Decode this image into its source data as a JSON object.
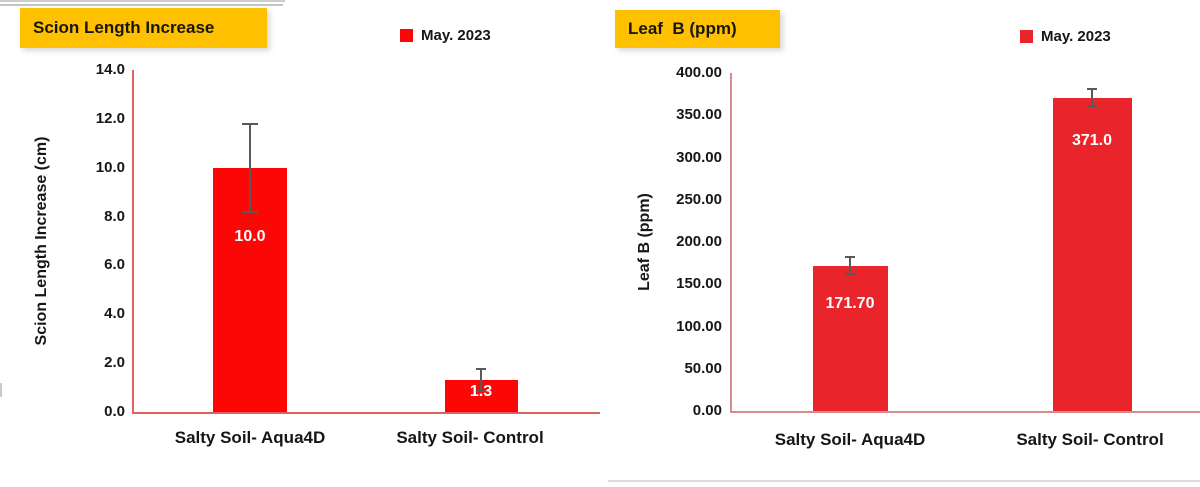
{
  "chart_data": [
    {
      "type": "bar",
      "title": "Scion Length Increase",
      "legend": {
        "label": "May. 2023",
        "position": "top-right"
      },
      "ylabel": "Scion Length Increase (cm)",
      "categories": [
        "Salty Soil- Aqua4D",
        "Salty Soil- Control"
      ],
      "values": [
        10.0,
        1.3
      ],
      "value_labels": [
        "10.0",
        "1.3"
      ],
      "errors": [
        1.8,
        0.45
      ],
      "ylim": [
        0,
        14
      ],
      "ytick_step": 2,
      "ytick_decimals": 1,
      "grid": false,
      "bar_color": "#fd0606",
      "axis_color": "#de6060",
      "error_color": "#595959",
      "title_bg": "#ffc000",
      "value_label_color": "#ffffff"
    },
    {
      "type": "bar",
      "title": "Leaf  B (ppm)",
      "legend": {
        "label": "May. 2023",
        "position": "top-right"
      },
      "ylabel": "Leaf B (ppm)",
      "categories": [
        "Salty Soil- Aqua4D",
        "Salty Soil- Control"
      ],
      "values": [
        171.7,
        371.0
      ],
      "value_labels": [
        "171.70",
        "371.0"
      ],
      "errors": [
        10,
        10
      ],
      "ylim": [
        0,
        400
      ],
      "ytick_step": 50,
      "ytick_decimals": 2,
      "grid": false,
      "bar_color": "#e9252b",
      "axis_color": "#d98a8a",
      "error_color": "#595959",
      "title_bg": "#ffc000",
      "value_label_color": "#ffffff"
    }
  ]
}
